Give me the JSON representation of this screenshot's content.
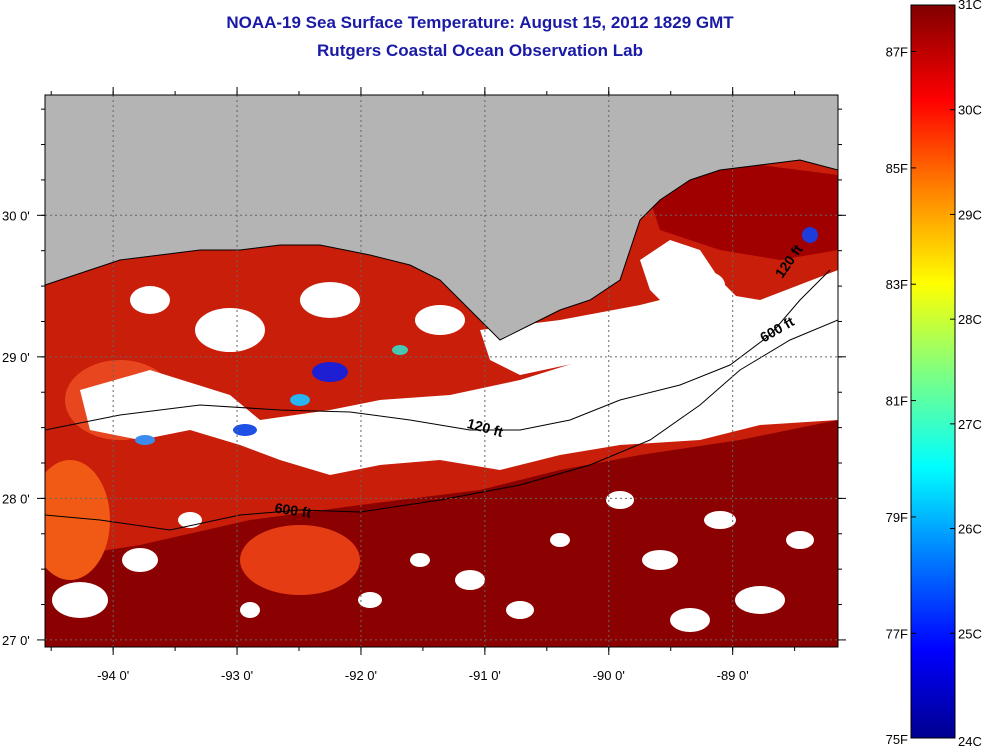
{
  "header": {
    "title_line1": "NOAA-19 Sea Surface Temperature:  August 15, 2012 1829 GMT",
    "title_line2": "Rutgers Coastal Ocean Observation Lab"
  },
  "map": {
    "lon_range": [
      -94.55,
      -88.15
    ],
    "lat_range": [
      26.95,
      30.85
    ],
    "lon_ticks": [
      {
        "value": -94,
        "label": "-94 0'"
      },
      {
        "value": -93,
        "label": "-93 0'"
      },
      {
        "value": -92,
        "label": "-92 0'"
      },
      {
        "value": -91,
        "label": "-91 0'"
      },
      {
        "value": -90,
        "label": "-90 0'"
      },
      {
        "value": -89,
        "label": "-89 0'"
      }
    ],
    "lat_ticks": [
      {
        "value": 30,
        "label": "30 0'"
      },
      {
        "value": 29,
        "label": "29 0'"
      },
      {
        "value": 28,
        "label": "28 0'"
      },
      {
        "value": 27,
        "label": "27 0'"
      }
    ],
    "contour_labels": [
      {
        "text": "120 ft",
        "lon": -91.15,
        "lat": 28.5,
        "angle": 15
      },
      {
        "text": "600 ft",
        "lon": -92.7,
        "lat": 27.9,
        "angle": 8
      },
      {
        "text": "120 ft",
        "lon": -88.6,
        "lat": 29.55,
        "angle": -55
      },
      {
        "text": "600 ft",
        "lon": -88.75,
        "lat": 29.1,
        "angle": -30
      }
    ],
    "colors": {
      "land": "#b4b4b4",
      "cloud": "#ffffff",
      "frame": "#000000"
    }
  },
  "colorbar": {
    "range_c": [
      24,
      31
    ],
    "celsius_ticks": [
      {
        "value": 31,
        "label": "31C"
      },
      {
        "value": 30,
        "label": "30C"
      },
      {
        "value": 29,
        "label": "29C"
      },
      {
        "value": 28,
        "label": "28C"
      },
      {
        "value": 27,
        "label": "27C"
      },
      {
        "value": 26,
        "label": "26C"
      },
      {
        "value": 25,
        "label": "25C"
      },
      {
        "value": 24,
        "label": "24C"
      }
    ],
    "fahrenheit_ticks": [
      {
        "value": 87,
        "label": "87F"
      },
      {
        "value": 85,
        "label": "85F"
      },
      {
        "value": 83,
        "label": "83F"
      },
      {
        "value": 81,
        "label": "81F"
      },
      {
        "value": 79,
        "label": "79F"
      },
      {
        "value": 77,
        "label": "77F"
      },
      {
        "value": 75,
        "label": "75F"
      }
    ],
    "colors": [
      "#00008f",
      "#0000ff",
      "#0080ff",
      "#00ffff",
      "#80ff80",
      "#ffff00",
      "#ff8000",
      "#ff0000",
      "#800000"
    ]
  }
}
